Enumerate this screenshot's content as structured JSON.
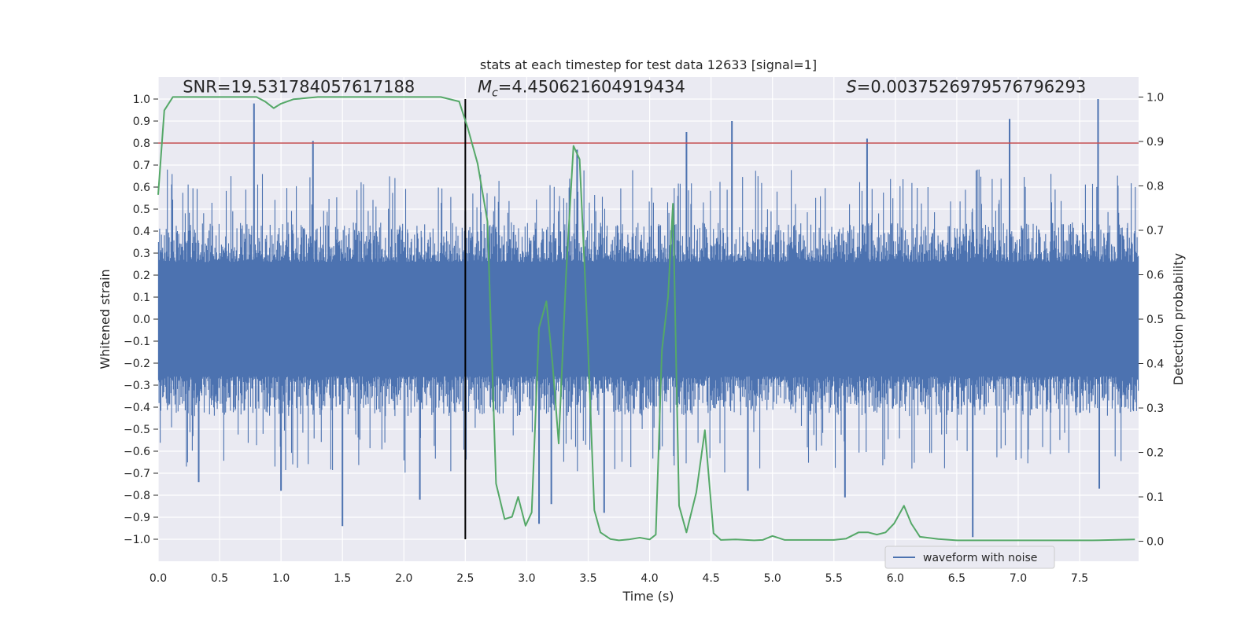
{
  "chart_data": {
    "type": "line",
    "title": "stats at each timestep for test data 12633 [signal=1]",
    "xlabel": "Time (s)",
    "ylabel_left": "Whitened strain",
    "ylabel_right": "Detection probability",
    "xlim": [
      0.0,
      7.98
    ],
    "ylim_left": [
      -1.1,
      1.1
    ],
    "ylim_right": [
      -0.045,
      1.045
    ],
    "x_ticks": [
      0.0,
      0.5,
      1.0,
      1.5,
      2.0,
      2.5,
      3.0,
      3.5,
      4.0,
      4.5,
      5.0,
      5.5,
      6.0,
      6.5,
      7.0,
      7.5
    ],
    "x_tick_labels": [
      "0.0",
      "0.5",
      "1.0",
      "1.5",
      "2.0",
      "2.5",
      "3.0",
      "3.5",
      "4.0",
      "4.5",
      "5.0",
      "5.5",
      "6.0",
      "6.5",
      "7.0",
      "7.5"
    ],
    "y_left_ticks": [
      1.0,
      0.9,
      0.8,
      0.7,
      0.6,
      0.5,
      0.4,
      0.3,
      0.2,
      0.1,
      0.0,
      -0.1,
      -0.2,
      -0.3,
      -0.4,
      -0.5,
      -0.6,
      -0.7,
      -0.8,
      -0.9,
      -1.0
    ],
    "y_left_tick_labels": [
      "1.0",
      "0.9",
      "0.8",
      "0.7",
      "0.6",
      "0.5",
      "0.4",
      "0.3",
      "0.2",
      "0.1",
      "0.0",
      "−0.1",
      "−0.2",
      "−0.3",
      "−0.4",
      "−0.5",
      "−0.6",
      "−0.7",
      "−0.8",
      "−0.9",
      "−1.0"
    ],
    "y_right_ticks": [
      1.0,
      0.9,
      0.8,
      0.7,
      0.6,
      0.5,
      0.4,
      0.3,
      0.2,
      0.1,
      0.0
    ],
    "y_right_tick_labels": [
      "1.0",
      "0.9",
      "0.8",
      "0.7",
      "0.6",
      "0.5",
      "0.4",
      "0.3",
      "0.2",
      "0.1",
      "0.0"
    ],
    "grid": true,
    "threshold_line": {
      "axis": "left",
      "y": 0.8,
      "color": "#c44e52"
    },
    "vertical_line": {
      "x": 2.5,
      "ymin": -1.0,
      "ymax": 1.0,
      "color": "#000000"
    },
    "annotations": {
      "snr": {
        "label": "SNR=19.531784057617188",
        "x": 0.2
      },
      "mc_symbol": "M",
      "mc_sub": "c",
      "mc_value": "=4.450621604919434",
      "mc_x": 2.6,
      "s_symbol": "S",
      "s_value": "=0.0037526979576796293",
      "s_x": 5.6,
      "annot_y": 1.03
    },
    "waveform": {
      "name": "waveform with noise",
      "color": "#4c72b0",
      "core_amplitude": 0.4,
      "spikes": [
        {
          "x": 0.78,
          "y": 0.98
        },
        {
          "x": 1.26,
          "y": 0.81
        },
        {
          "x": 2.5,
          "y": 0.49
        },
        {
          "x": 3.41,
          "y": 0.77
        },
        {
          "x": 4.3,
          "y": 0.85
        },
        {
          "x": 4.67,
          "y": 0.9
        },
        {
          "x": 5.77,
          "y": 0.82
        },
        {
          "x": 6.93,
          "y": 0.91
        },
        {
          "x": 7.65,
          "y": 1.0
        },
        {
          "x": 1.5,
          "y": -0.94
        },
        {
          "x": 1.0,
          "y": -0.78
        },
        {
          "x": 2.13,
          "y": -0.82
        },
        {
          "x": 3.1,
          "y": -0.93
        },
        {
          "x": 3.63,
          "y": -0.88
        },
        {
          "x": 3.2,
          "y": -0.84
        },
        {
          "x": 6.63,
          "y": -0.99
        },
        {
          "x": 5.59,
          "y": -0.81
        },
        {
          "x": 4.8,
          "y": -0.78
        },
        {
          "x": 7.66,
          "y": -0.77
        },
        {
          "x": 0.33,
          "y": -0.74
        }
      ]
    },
    "probability": {
      "name": "detection probability",
      "color": "#55a868",
      "x": [
        0.0,
        0.05,
        0.12,
        0.2,
        0.5,
        0.8,
        0.87,
        0.94,
        1.0,
        1.1,
        1.3,
        1.6,
        2.0,
        2.3,
        2.45,
        2.52,
        2.6,
        2.68,
        2.75,
        2.82,
        2.88,
        2.93,
        2.99,
        3.04,
        3.1,
        3.16,
        3.21,
        3.26,
        3.32,
        3.38,
        3.43,
        3.49,
        3.55,
        3.6,
        3.68,
        3.75,
        3.83,
        3.92,
        4.0,
        4.05,
        4.1,
        4.15,
        4.19,
        4.24,
        4.3,
        4.38,
        4.45,
        4.52,
        4.58,
        4.7,
        4.85,
        4.92,
        5.0,
        5.1,
        5.3,
        5.5,
        5.6,
        5.7,
        5.78,
        5.85,
        5.92,
        5.99,
        6.07,
        6.13,
        6.2,
        6.35,
        6.5,
        6.8,
        7.2,
        7.6,
        7.95
      ],
      "values": [
        0.78,
        0.97,
        1.0,
        1.0,
        1.0,
        1.0,
        0.99,
        0.975,
        0.985,
        0.995,
        1.0,
        1.0,
        1.0,
        1.0,
        0.99,
        0.93,
        0.85,
        0.72,
        0.13,
        0.05,
        0.055,
        0.1,
        0.035,
        0.065,
        0.48,
        0.54,
        0.4,
        0.22,
        0.6,
        0.89,
        0.86,
        0.5,
        0.07,
        0.02,
        0.005,
        0.002,
        0.004,
        0.008,
        0.004,
        0.015,
        0.43,
        0.55,
        0.76,
        0.08,
        0.02,
        0.11,
        0.25,
        0.018,
        0.003,
        0.004,
        0.002,
        0.003,
        0.012,
        0.003,
        0.003,
        0.003,
        0.006,
        0.02,
        0.02,
        0.015,
        0.02,
        0.04,
        0.08,
        0.04,
        0.01,
        0.005,
        0.002,
        0.002,
        0.002,
        0.002,
        0.004
      ]
    },
    "legend": {
      "position": "bottom-right",
      "entries": [
        "waveform with noise"
      ]
    }
  }
}
